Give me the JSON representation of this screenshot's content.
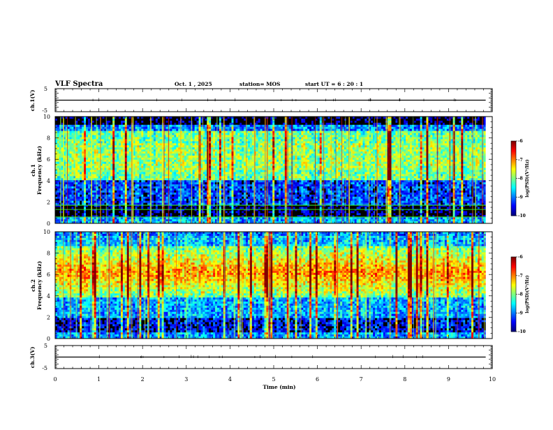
{
  "header": {
    "title": "VLF Spectra",
    "date": "Oct. 1 , 2025",
    "station": "station= MOS",
    "start": "start  UT  =   6 : 20 : 1"
  },
  "colorbar": {
    "label": "log(PSD)(V²/Hz)",
    "ticks": [
      "-6",
      "-7",
      "-8",
      "-9",
      "-10"
    ],
    "range": [
      -10,
      -6
    ]
  },
  "chart_data": [
    {
      "type": "line",
      "name": "ch1-voltage",
      "ylabel": "ch.1(V)",
      "ylim": [
        -5,
        5
      ],
      "yticks": [
        "5",
        "-5"
      ],
      "xlim": [
        0,
        10
      ],
      "baseline": 0
    },
    {
      "type": "heatmap",
      "name": "ch1-spectrogram",
      "ylabel": "ch.1\nFrequency (kHz)",
      "ylabel_lines": [
        "ch.1",
        "Frequency (kHz)"
      ],
      "ylim": [
        0,
        10
      ],
      "yticks": [
        "0",
        "2",
        "4",
        "6",
        "8",
        "10"
      ],
      "xlim": [
        0,
        10
      ],
      "data_end_min": 9.85,
      "zlim": [
        -10,
        -6
      ]
    },
    {
      "type": "heatmap",
      "name": "ch2-spectrogram",
      "ylabel": "ch.2\nFrequency (kHz)",
      "ylabel_lines": [
        "ch.2",
        "Frequency (kHz)"
      ],
      "ylim": [
        0,
        10
      ],
      "yticks": [
        "0",
        "2",
        "4",
        "6",
        "8",
        "10"
      ],
      "xlim": [
        0,
        10
      ],
      "data_end_min": 9.85,
      "zlim": [
        -10,
        -6
      ]
    },
    {
      "type": "line",
      "name": "ch3-voltage",
      "ylabel": "ch.3(V)",
      "ylim": [
        -5,
        5
      ],
      "yticks": [
        "5",
        "-5"
      ],
      "xlim": [
        0,
        10
      ],
      "xlabel": "Time  (min)",
      "xticks": [
        "0",
        "1",
        "2",
        "3",
        "4",
        "5",
        "6",
        "7",
        "8",
        "9",
        "10"
      ],
      "baseline": 0
    }
  ]
}
